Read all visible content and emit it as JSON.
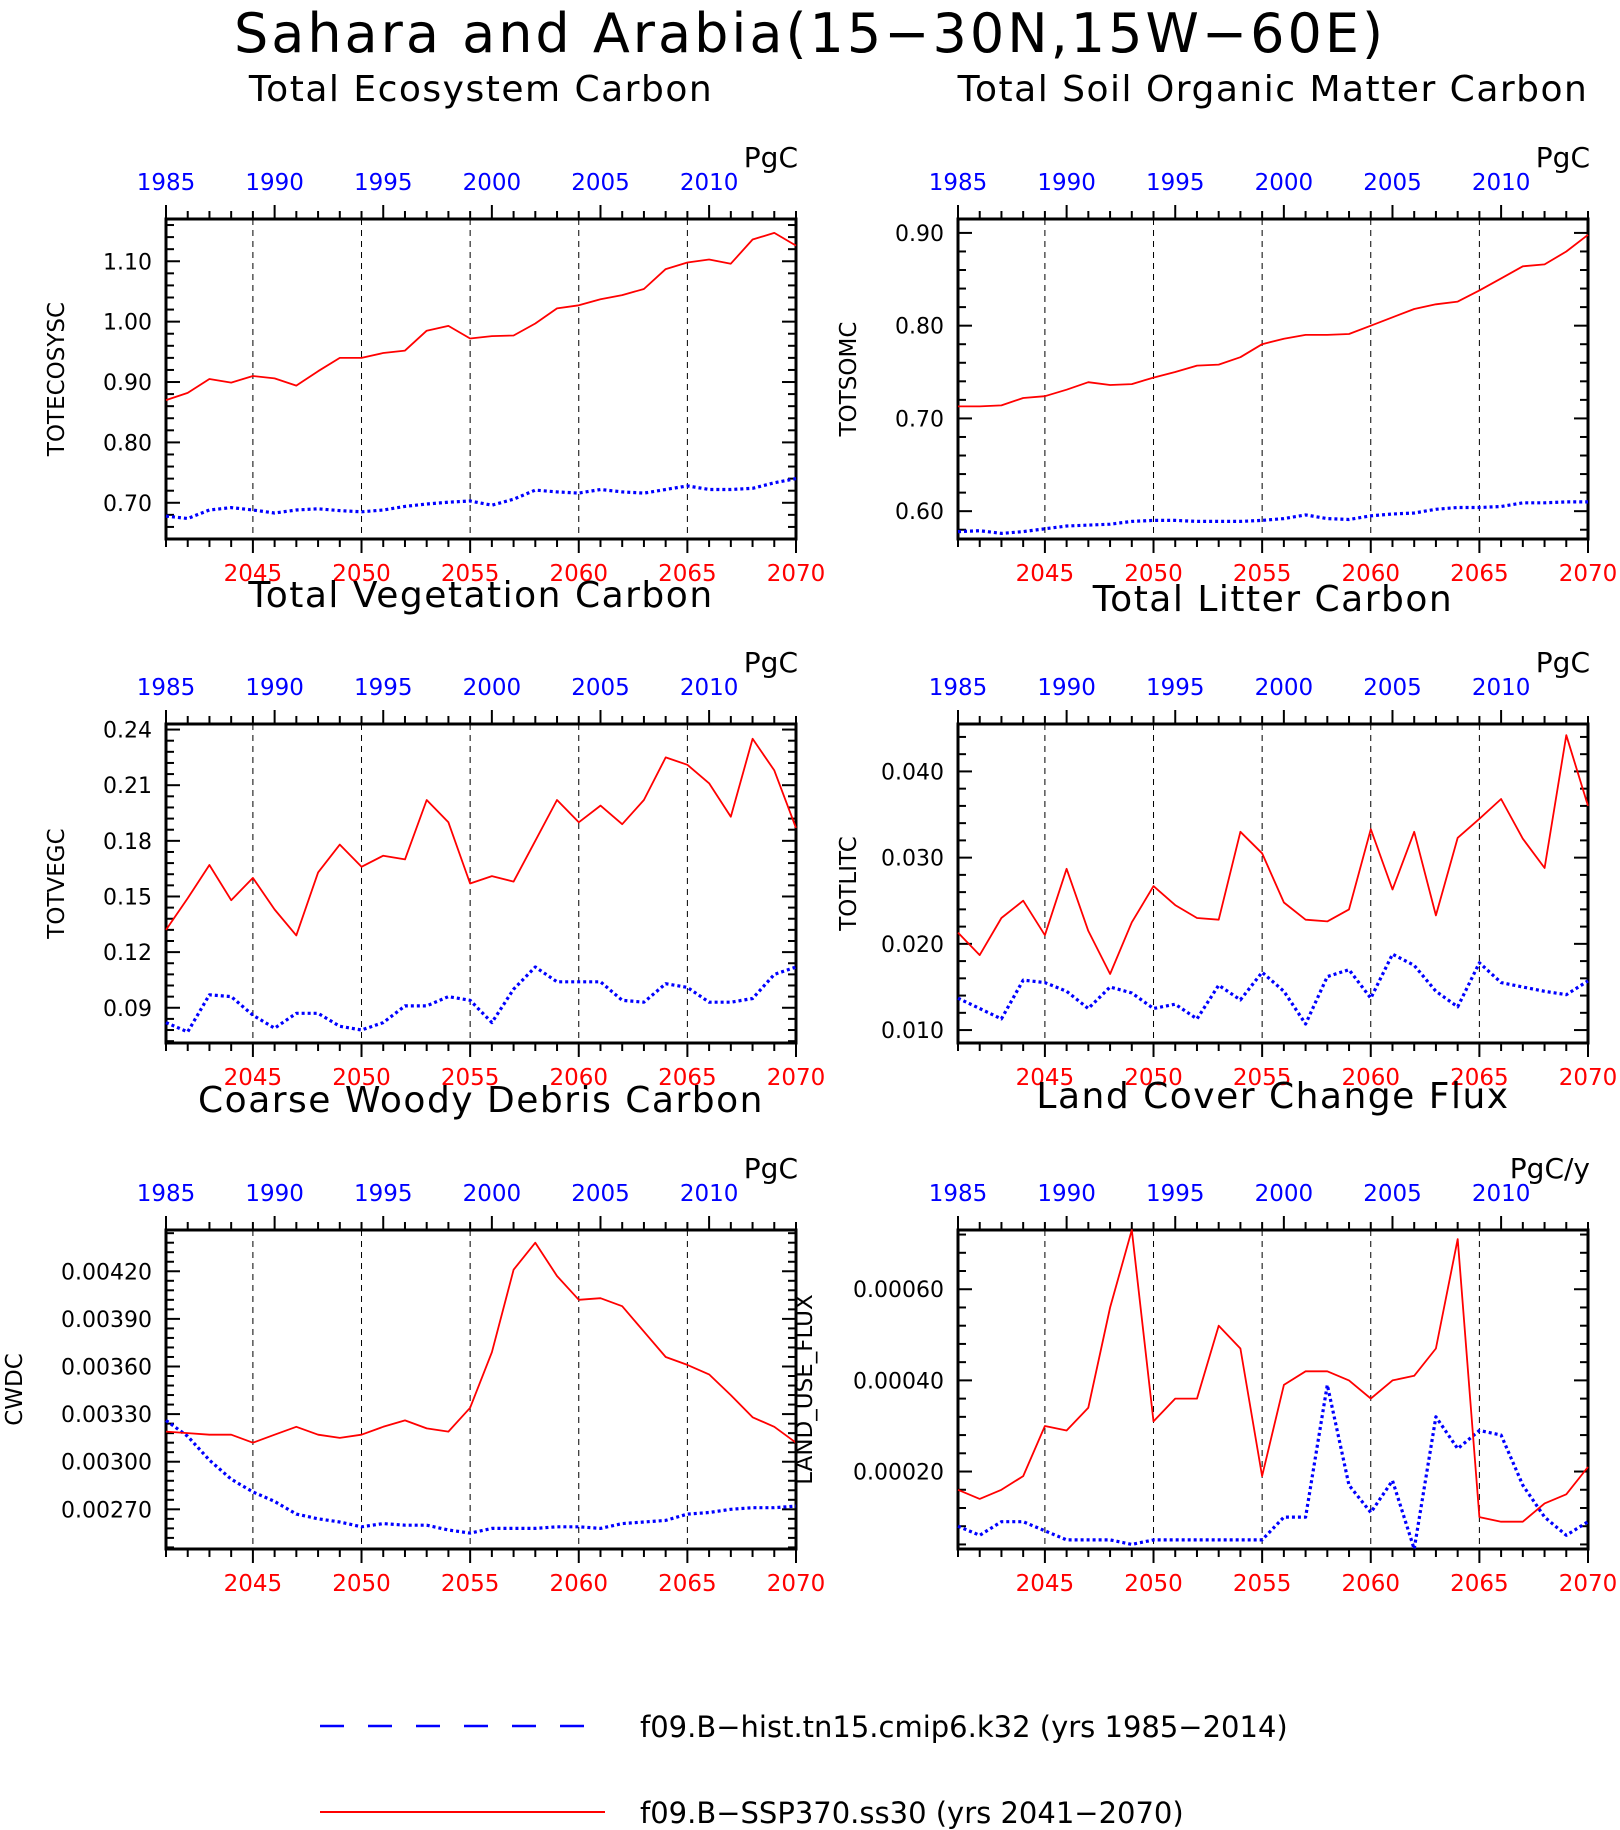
{
  "title": "Sahara and Arabia(15−30N,15W−60E)",
  "colors": {
    "hist": "#0000ff",
    "ssp": "#ff0000",
    "axis": "#000000"
  },
  "legend": [
    {
      "label": "f09.B−hist.tn15.cmip6.k32 (yrs 1985−2014)",
      "style": "dashed",
      "color": "#0000ff"
    },
    {
      "label": "f09.B−SSP370.ss30 (yrs 2041−2070)",
      "style": "solid",
      "color": "#ff0000"
    }
  ],
  "chart_data": [
    {
      "type": "line",
      "title": "Total Ecosystem Carbon",
      "ylabel": "TOTECOSYSC",
      "units": "PgC",
      "ylim": [
        0.64,
        1.17
      ],
      "yticks": [
        0.7,
        0.8,
        0.9,
        1.0,
        1.1
      ],
      "ytick_labels": [
        "0.70",
        "0.80",
        "0.90",
        "1.00",
        "1.10"
      ],
      "x_bottom_ticks": [
        "2045",
        "2050",
        "2055",
        "2060",
        "2065",
        "2070"
      ],
      "x_top_ticks": [
        "1985",
        "1990",
        "1995",
        "2000",
        "2005",
        "2010"
      ],
      "series": [
        {
          "name": "f09.B−hist.tn15.cmip6.k32",
          "x_years": "1985-2014",
          "style": "dashed",
          "values": [
            0.678,
            0.674,
            0.688,
            0.692,
            0.688,
            0.683,
            0.688,
            0.69,
            0.687,
            0.685,
            0.688,
            0.694,
            0.698,
            0.701,
            0.703,
            0.696,
            0.706,
            0.721,
            0.718,
            0.716,
            0.722,
            0.718,
            0.716,
            0.722,
            0.728,
            0.722,
            0.722,
            0.724,
            0.733,
            0.74
          ]
        },
        {
          "name": "f09.B−SSP370.ss30",
          "x_years": "2041-2070",
          "style": "solid",
          "values": [
            0.87,
            0.882,
            0.905,
            0.899,
            0.91,
            0.906,
            0.894,
            0.918,
            0.94,
            0.94,
            0.948,
            0.952,
            0.985,
            0.993,
            0.972,
            0.976,
            0.977,
            0.997,
            1.022,
            1.027,
            1.037,
            1.044,
            1.054,
            1.087,
            1.098,
            1.103,
            1.096,
            1.136,
            1.147,
            1.126
          ]
        }
      ]
    },
    {
      "type": "line",
      "title": "Total Soil Organic Matter Carbon",
      "ylabel": "TOTSOMC",
      "units": "PgC",
      "ylim": [
        0.57,
        0.915
      ],
      "yticks": [
        0.6,
        0.7,
        0.8,
        0.9
      ],
      "ytick_labels": [
        "0.60",
        "0.70",
        "0.80",
        "0.90"
      ],
      "x_bottom_ticks": [
        "2045",
        "2050",
        "2055",
        "2060",
        "2065",
        "2070"
      ],
      "x_top_ticks": [
        "1985",
        "1990",
        "1995",
        "2000",
        "2005",
        "2010"
      ],
      "series": [
        {
          "name": "f09.B−hist.tn15.cmip6.k32",
          "x_years": "1985-2014",
          "style": "dashed",
          "values": [
            0.578,
            0.579,
            0.576,
            0.578,
            0.581,
            0.584,
            0.585,
            0.586,
            0.589,
            0.59,
            0.59,
            0.589,
            0.589,
            0.589,
            0.59,
            0.592,
            0.596,
            0.592,
            0.591,
            0.595,
            0.597,
            0.598,
            0.602,
            0.604,
            0.604,
            0.605,
            0.609,
            0.609,
            0.61,
            0.61
          ]
        },
        {
          "name": "f09.B−SSP370.ss30",
          "x_years": "2041-2070",
          "style": "solid",
          "values": [
            0.713,
            0.713,
            0.714,
            0.722,
            0.724,
            0.731,
            0.739,
            0.736,
            0.737,
            0.744,
            0.75,
            0.757,
            0.758,
            0.766,
            0.78,
            0.786,
            0.79,
            0.79,
            0.791,
            0.8,
            0.809,
            0.818,
            0.823,
            0.826,
            0.838,
            0.851,
            0.864,
            0.866,
            0.88,
            0.898
          ]
        }
      ]
    },
    {
      "type": "line",
      "title": "Total Vegetation Carbon",
      "ylabel": "TOTVEGC",
      "units": "PgC",
      "ylim": [
        0.071,
        0.243
      ],
      "yticks": [
        0.09,
        0.12,
        0.15,
        0.18,
        0.21,
        0.24
      ],
      "ytick_labels": [
        "0.09",
        "0.12",
        "0.15",
        "0.18",
        "0.21",
        "0.24"
      ],
      "x_bottom_ticks": [
        "2045",
        "2050",
        "2055",
        "2060",
        "2065",
        "2070"
      ],
      "x_top_ticks": [
        "1985",
        "1990",
        "1995",
        "2000",
        "2005",
        "2010"
      ],
      "series": [
        {
          "name": "f09.B−hist.tn15.cmip6.k32",
          "x_years": "1985-2014",
          "style": "dashed",
          "values": [
            0.082,
            0.077,
            0.097,
            0.096,
            0.086,
            0.079,
            0.087,
            0.087,
            0.08,
            0.078,
            0.082,
            0.091,
            0.091,
            0.096,
            0.094,
            0.082,
            0.1,
            0.112,
            0.104,
            0.104,
            0.104,
            0.094,
            0.093,
            0.103,
            0.101,
            0.093,
            0.093,
            0.095,
            0.108,
            0.112
          ]
        },
        {
          "name": "f09.B−SSP370.ss30",
          "x_years": "2041-2070",
          "style": "solid",
          "values": [
            0.132,
            0.149,
            0.167,
            0.148,
            0.16,
            0.143,
            0.129,
            0.163,
            0.178,
            0.166,
            0.172,
            0.17,
            0.202,
            0.19,
            0.157,
            0.161,
            0.158,
            0.18,
            0.202,
            0.19,
            0.199,
            0.189,
            0.202,
            0.225,
            0.221,
            0.211,
            0.193,
            0.235,
            0.218,
            0.187
          ]
        }
      ]
    },
    {
      "type": "line",
      "title": "Total Litter Carbon",
      "ylabel": "TOTLITC",
      "units": "PgC",
      "ylim": [
        0.0085,
        0.0455
      ],
      "yticks": [
        0.01,
        0.02,
        0.03,
        0.04
      ],
      "ytick_labels": [
        "0.010",
        "0.020",
        "0.030",
        "0.040"
      ],
      "x_bottom_ticks": [
        "2045",
        "2050",
        "2055",
        "2060",
        "2065",
        "2070"
      ],
      "x_top_ticks": [
        "1985",
        "1990",
        "1995",
        "2000",
        "2005",
        "2010"
      ],
      "series": [
        {
          "name": "f09.B−hist.tn15.cmip6.k32",
          "x_years": "1985-2014",
          "style": "dashed",
          "values": [
            0.0137,
            0.0125,
            0.0113,
            0.0158,
            0.0155,
            0.0145,
            0.0125,
            0.015,
            0.0143,
            0.0125,
            0.013,
            0.0113,
            0.0152,
            0.0135,
            0.0167,
            0.0145,
            0.0107,
            0.0162,
            0.017,
            0.0137,
            0.0188,
            0.0175,
            0.0145,
            0.0127,
            0.0178,
            0.0155,
            0.015,
            0.0145,
            0.0141,
            0.0157
          ]
        },
        {
          "name": "f09.B−SSP370.ss30",
          "x_years": "2041-2070",
          "style": "solid",
          "values": [
            0.0213,
            0.0187,
            0.023,
            0.025,
            0.021,
            0.0287,
            0.0215,
            0.0165,
            0.0225,
            0.0267,
            0.0245,
            0.023,
            0.0228,
            0.033,
            0.0305,
            0.0248,
            0.0228,
            0.0226,
            0.024,
            0.0333,
            0.0263,
            0.033,
            0.0233,
            0.0323,
            0.0345,
            0.0368,
            0.0322,
            0.0288,
            0.0442,
            0.036
          ]
        }
      ]
    },
    {
      "type": "line",
      "title": "Coarse Woody Debris Carbon",
      "ylabel": "CWDC",
      "units": "PgC",
      "ylim": [
        0.00245,
        0.00446
      ],
      "yticks": [
        0.0027,
        0.003,
        0.0033,
        0.0036,
        0.0039,
        0.0042
      ],
      "ytick_labels": [
        "0.00270",
        "0.00300",
        "0.00330",
        "0.00360",
        "0.00390",
        "0.00420"
      ],
      "x_bottom_ticks": [
        "2045",
        "2050",
        "2055",
        "2060",
        "2065",
        "2070"
      ],
      "x_top_ticks": [
        "1985",
        "1990",
        "1995",
        "2000",
        "2005",
        "2010"
      ],
      "series": [
        {
          "name": "f09.B−hist.tn15.cmip6.k32",
          "x_years": "1985-2014",
          "style": "dashed",
          "values": [
            0.00326,
            0.00316,
            0.00301,
            0.00289,
            0.00281,
            0.00275,
            0.00267,
            0.00264,
            0.00262,
            0.00259,
            0.00261,
            0.0026,
            0.0026,
            0.00257,
            0.00255,
            0.00258,
            0.00258,
            0.00258,
            0.00259,
            0.00259,
            0.00258,
            0.00261,
            0.00262,
            0.00263,
            0.00267,
            0.00268,
            0.0027,
            0.00271,
            0.00271,
            0.00272
          ]
        },
        {
          "name": "f09.B−SSP370.ss30",
          "x_years": "2041-2070",
          "style": "solid",
          "values": [
            0.00319,
            0.00318,
            0.00317,
            0.00317,
            0.00312,
            0.00317,
            0.00322,
            0.00317,
            0.00315,
            0.00317,
            0.00322,
            0.00326,
            0.00321,
            0.00319,
            0.00334,
            0.00369,
            0.00421,
            0.00438,
            0.00417,
            0.00402,
            0.00403,
            0.00398,
            0.00382,
            0.00366,
            0.00361,
            0.00355,
            0.00342,
            0.00328,
            0.00322,
            0.00312
          ]
        }
      ]
    },
    {
      "type": "line",
      "title": "Land Cover Change Flux",
      "ylabel": "LAND_USE_FLUX",
      "units": "PgC/y",
      "ylim": [
        3e-05,
        0.00073
      ],
      "yticks": [
        0.0002,
        0.0004,
        0.0006
      ],
      "ytick_labels": [
        "0.00020",
        "0.00040",
        "0.00060"
      ],
      "x_bottom_ticks": [
        "2045",
        "2050",
        "2055",
        "2060",
        "2065",
        "2070"
      ],
      "x_top_ticks": [
        "1985",
        "1990",
        "1995",
        "2000",
        "2005",
        "2010"
      ],
      "series": [
        {
          "name": "f09.B−hist.tn15.cmip6.k32",
          "x_years": "1985-2014",
          "style": "dashed",
          "values": [
            8e-05,
            6e-05,
            9e-05,
            9e-05,
            7e-05,
            5e-05,
            5e-05,
            5e-05,
            4e-05,
            5e-05,
            5e-05,
            5e-05,
            5e-05,
            5e-05,
            5e-05,
            0.0001,
            0.0001,
            0.00039,
            0.00017,
            0.00011,
            0.00018,
            3e-05,
            0.00032,
            0.00025,
            0.00029,
            0.00028,
            0.00017,
            0.0001,
            6e-05,
            9e-05
          ]
        },
        {
          "name": "f09.B−SSP370.ss30",
          "x_years": "2041-2070",
          "style": "solid",
          "values": [
            0.00016,
            0.00014,
            0.00016,
            0.00019,
            0.0003,
            0.00029,
            0.00034,
            0.00056,
            0.00073,
            0.00031,
            0.00036,
            0.00036,
            0.00052,
            0.00047,
            0.00019,
            0.00039,
            0.00042,
            0.00042,
            0.0004,
            0.00036,
            0.0004,
            0.00041,
            0.00047,
            0.00071,
            0.0001,
            9e-05,
            9e-05,
            0.00013,
            0.00015,
            0.00021
          ]
        }
      ]
    }
  ]
}
